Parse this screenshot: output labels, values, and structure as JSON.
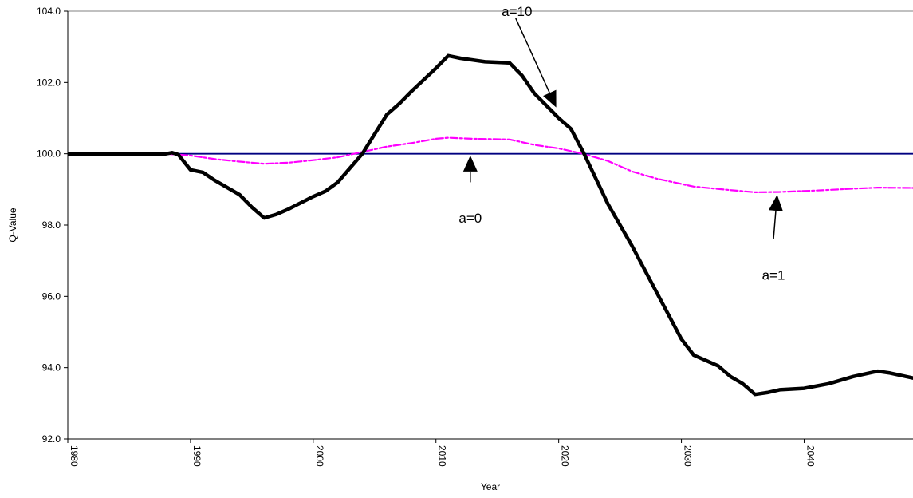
{
  "chart_data": {
    "type": "line",
    "title": "",
    "xlabel": "Year",
    "ylabel": "Q-Value",
    "xlim": [
      1980,
      2049
    ],
    "ylim": [
      92.0,
      104.0
    ],
    "x_ticks": [
      "1980",
      "1990",
      "2000",
      "2010",
      "2020",
      "2030",
      "2040"
    ],
    "y_ticks": [
      "92.0",
      "94.0",
      "96.0",
      "98.0",
      "100.0",
      "102.0",
      "104.0"
    ],
    "grid": false,
    "series": [
      {
        "name": "a=0",
        "color": "#000080",
        "dash": "solid",
        "points": [
          [
            1980,
            100.0
          ],
          [
            2049,
            100.0
          ]
        ]
      },
      {
        "name": "a=1",
        "color": "#ff00ff",
        "dash": "dashed",
        "points": [
          [
            1988,
            100.0
          ],
          [
            1990,
            99.95
          ],
          [
            1992,
            99.85
          ],
          [
            1994,
            99.78
          ],
          [
            1996,
            99.72
          ],
          [
            1998,
            99.75
          ],
          [
            2000,
            99.82
          ],
          [
            2002,
            99.9
          ],
          [
            2004,
            100.05
          ],
          [
            2006,
            100.2
          ],
          [
            2008,
            100.3
          ],
          [
            2010,
            100.42
          ],
          [
            2011,
            100.45
          ],
          [
            2013,
            100.42
          ],
          [
            2016,
            100.4
          ],
          [
            2018,
            100.25
          ],
          [
            2020,
            100.15
          ],
          [
            2022,
            100.0
          ],
          [
            2024,
            99.8
          ],
          [
            2026,
            99.5
          ],
          [
            2028,
            99.3
          ],
          [
            2031,
            99.08
          ],
          [
            2034,
            98.98
          ],
          [
            2036,
            98.92
          ],
          [
            2038,
            98.93
          ],
          [
            2041,
            98.97
          ],
          [
            2044,
            99.02
          ],
          [
            2046,
            99.05
          ],
          [
            2049,
            99.04
          ]
        ]
      },
      {
        "name": "a=10",
        "color": "#000000",
        "dash": "solid",
        "points": [
          [
            1980,
            100.0
          ],
          [
            1988,
            100.0
          ],
          [
            1988.5,
            100.03
          ],
          [
            1989,
            99.98
          ],
          [
            1990,
            99.55
          ],
          [
            1991,
            99.48
          ],
          [
            1992,
            99.25
          ],
          [
            1994,
            98.85
          ],
          [
            1995,
            98.5
          ],
          [
            1996,
            98.2
          ],
          [
            1997,
            98.3
          ],
          [
            1998,
            98.45
          ],
          [
            2000,
            98.8
          ],
          [
            2001,
            98.95
          ],
          [
            2002,
            99.2
          ],
          [
            2004,
            100.0
          ],
          [
            2006,
            101.1
          ],
          [
            2007,
            101.4
          ],
          [
            2008,
            101.75
          ],
          [
            2010,
            102.4
          ],
          [
            2011,
            102.75
          ],
          [
            2012,
            102.68
          ],
          [
            2014,
            102.58
          ],
          [
            2016,
            102.55
          ],
          [
            2017,
            102.2
          ],
          [
            2018,
            101.7
          ],
          [
            2020,
            101.0
          ],
          [
            2021,
            100.7
          ],
          [
            2022,
            100.05
          ],
          [
            2024,
            98.6
          ],
          [
            2025,
            98.0
          ],
          [
            2026,
            97.4
          ],
          [
            2028,
            96.1
          ],
          [
            2030,
            94.8
          ],
          [
            2031,
            94.35
          ],
          [
            2032,
            94.2
          ],
          [
            2033,
            94.05
          ],
          [
            2034,
            93.75
          ],
          [
            2035,
            93.55
          ],
          [
            2036,
            93.25
          ],
          [
            2037,
            93.3
          ],
          [
            2038,
            93.38
          ],
          [
            2040,
            93.42
          ],
          [
            2042,
            93.55
          ],
          [
            2044,
            93.75
          ],
          [
            2046,
            93.9
          ],
          [
            2047,
            93.85
          ],
          [
            2049,
            93.7
          ]
        ]
      }
    ],
    "annotations": [
      {
        "text": "a=10",
        "arrow_from": [
          2016.5,
          103.8
        ],
        "arrow_to": [
          2019.8,
          101.3
        ],
        "text_at": [
          2016.6,
          104.0
        ]
      },
      {
        "text": "a=0",
        "arrow_from": [
          2012.8,
          99.2
        ],
        "arrow_to": [
          2012.8,
          99.95
        ],
        "text_at": [
          2012.8,
          98.2
        ]
      },
      {
        "text": "a=1",
        "arrow_from": [
          2037.5,
          97.6
        ],
        "arrow_to": [
          2037.8,
          98.85
        ],
        "text_at": [
          2037.5,
          96.6
        ]
      }
    ]
  }
}
